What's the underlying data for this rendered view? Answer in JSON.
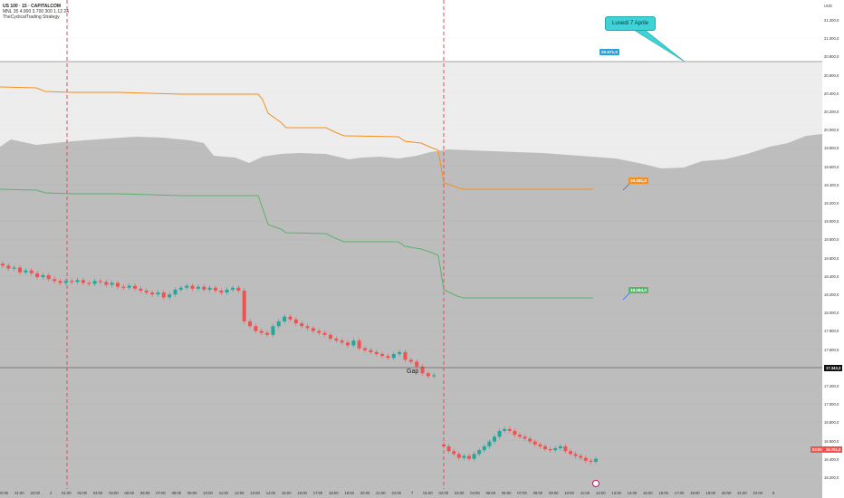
{
  "header": {
    "title": "US 100 · 15 · CAPITALCOM",
    "params": "MNL 35 4.900 3.700 300 1.12 24",
    "strategy": "TheCyclicalTrading Strategy"
  },
  "y_axis": {
    "corner_label": "USD",
    "ticks": [
      "21.200,0",
      "21.000,0",
      "20.800,0",
      "20.600,0",
      "20.400,0",
      "20.200,0",
      "20.000,0",
      "19.800,0",
      "19.600,0",
      "19.400,0",
      "19.200,0",
      "19.000,0",
      "18.800,0",
      "18.600,0",
      "18.400,0",
      "18.200,0",
      "18.000,0",
      "17.800,0",
      "17.600,0",
      "17.400,0",
      "17.200,0",
      "17.000,0",
      "16.800,0",
      "16.600,0",
      "16.400,0",
      "16.200,0"
    ]
  },
  "x_axis": {
    "ticks": [
      "20:00",
      "21:00",
      "22:00",
      "4",
      "01:00",
      "02:00",
      "03:00",
      "04:00",
      "05:00",
      "06:00",
      "07:00",
      "08:00",
      "09:00",
      "10:00",
      "11:00",
      "12:00",
      "13:00",
      "14:00",
      "15:00",
      "16:00",
      "17:00",
      "18:00",
      "19:00",
      "20:00",
      "21:00",
      "22:00",
      "7",
      "01:00",
      "02:00",
      "03:00",
      "04:00",
      "05:00",
      "06:00",
      "07:00",
      "08:00",
      "09:00",
      "10:00",
      "11:00",
      "12:00",
      "13:00",
      "14:00",
      "15:00",
      "16:00",
      "17:00",
      "18:00",
      "19:00",
      "20:00",
      "21:00",
      "22:00",
      "8"
    ]
  },
  "annotations": {
    "callout": "Lunedì 7 Aprile",
    "level_high": "20.671,0",
    "orange_level": "19.281,0",
    "green_level": "18.084,0",
    "gap": "Gap",
    "axis_price_prev": "17.343,3",
    "axis_price_last": "16.701,0",
    "axis_last_prefix": "03:00"
  },
  "colors": {
    "upper_band": "#ededed",
    "lower_band": "#bdbdbd",
    "orange_line": "#f5901e",
    "green_line": "#5ab46a",
    "candle_up": "#26a69a",
    "candle_down": "#ef5350",
    "session_divider": "#e84a5f",
    "callout": "#3fd2d6",
    "level_tag": "#2b9fd8"
  },
  "chart_data": {
    "type": "candlestick",
    "ylim": [
      16100,
      21300
    ],
    "series": [
      {
        "values": [
          18480,
          18450,
          18460,
          18410,
          18430,
          18400,
          18360,
          18380,
          18340,
          18320,
          18300,
          18320,
          18310,
          18330,
          18300,
          18290,
          18320,
          18310,
          18280,
          18300,
          18260,
          18250,
          18270,
          18240,
          18220,
          18200,
          18180,
          18200,
          18150,
          18180,
          18230,
          18250,
          18270,
          18240,
          18260,
          18230,
          18250,
          18220,
          18200,
          18230,
          18250,
          18220,
          17900,
          17850,
          17800,
          17780,
          17760,
          17850,
          17900,
          17950,
          17920,
          17880,
          17850,
          17830,
          17800,
          17780,
          17760,
          17720,
          17700,
          17680,
          17650,
          17700,
          17620,
          17600,
          17580,
          17560,
          17540,
          17520,
          17560,
          17580,
          17500,
          17480,
          17430,
          17360,
          17330,
          17340
        ]
      },
      {
        "values": [
          16600,
          16550,
          16520,
          16480,
          16500,
          16470,
          16520,
          16560,
          16600,
          16650,
          16700,
          16760,
          16780,
          16760,
          16720,
          16700,
          16680,
          16650,
          16620,
          16600,
          16570,
          16560,
          16580,
          16600,
          16550,
          16520,
          16500,
          16480,
          16450,
          16440,
          16470
        ]
      }
    ],
    "lines": [
      {
        "name": "",
        "color": "orange"
      },
      {
        "name": "",
        "color": "green"
      }
    ]
  }
}
